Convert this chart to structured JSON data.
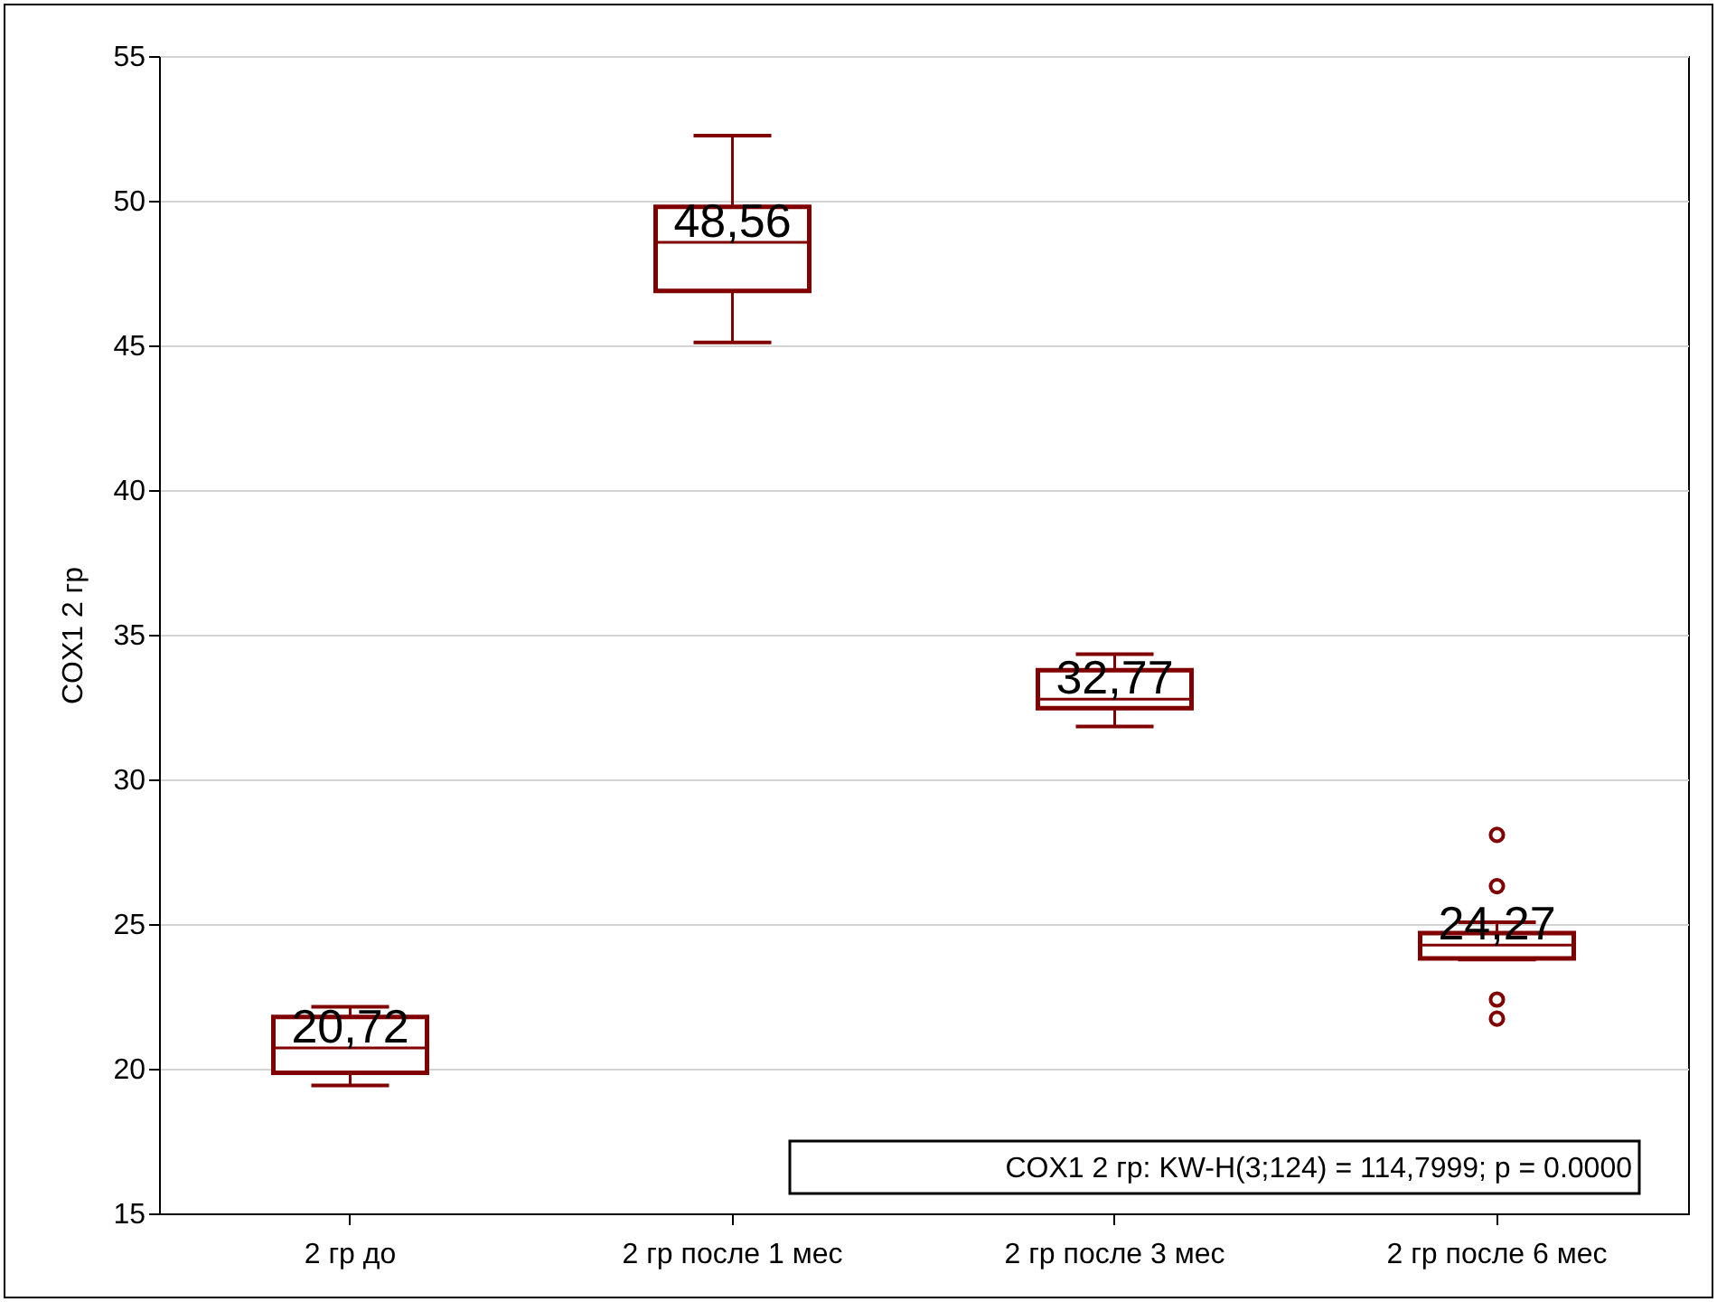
{
  "chart_data": {
    "type": "box",
    "ylabel": "COX1 2 гр",
    "categories": [
      "2 гр до",
      "2 гр после 1 мес",
      "2 гр после 3 мес",
      "2 гр после 6 мес"
    ],
    "series": [
      {
        "color": "#800000",
        "boxes": [
          {
            "low": 19.42,
            "q1": 19.86,
            "median": 20.72,
            "q3": 21.79,
            "high": 22.14
          },
          {
            "low": 45.1,
            "q1": 46.88,
            "median": 48.56,
            "q3": 49.79,
            "high": 52.25
          },
          {
            "low": 31.83,
            "q1": 32.46,
            "median": 32.77,
            "q3": 33.77,
            "high": 34.33
          },
          {
            "low": 23.77,
            "q1": 23.81,
            "median": 24.27,
            "q3": 24.69,
            "high": 25.06,
            "outliers": [
              28.08,
              26.31,
              22.39,
              21.73
            ]
          }
        ]
      }
    ],
    "annotations": [
      {
        "text": "20,72",
        "x": "2 гр до",
        "y": 20.72
      },
      {
        "text": "48,56",
        "x": "2 гр после 1 мес",
        "y": 48.56
      },
      {
        "text": "32,77",
        "x": "2 гр после 3 мес",
        "y": 32.77
      },
      {
        "text": "24,27",
        "x": "2 гр после 6 мес",
        "y": 24.27
      },
      "COX1 2 гр:  KW-H(3;124) = 114,7999; p = 0.0000"
    ],
    "ylim": [
      15,
      55
    ],
    "yticks": [
      15,
      20,
      25,
      30,
      35,
      40,
      45,
      50,
      55
    ],
    "grid": "y"
  }
}
